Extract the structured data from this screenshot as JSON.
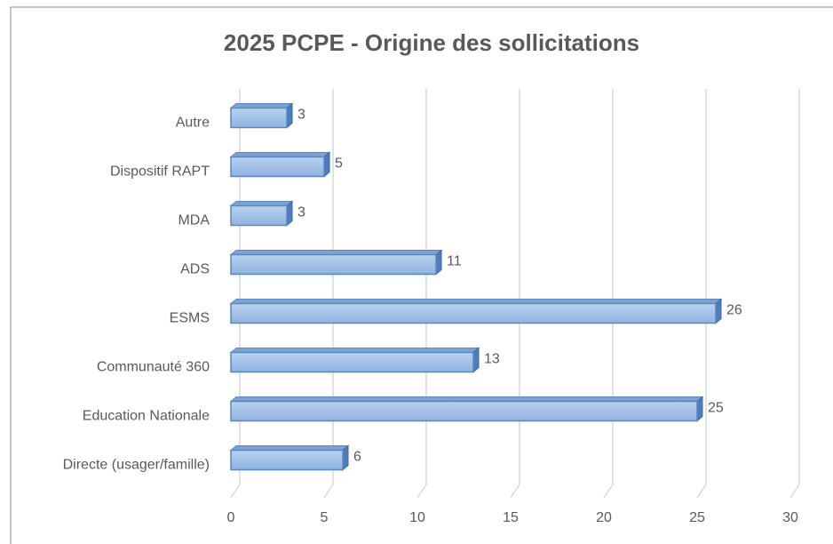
{
  "chart_data": {
    "type": "bar3d_horizontal",
    "title": "2025 PCPE - Origine des sollicitations",
    "categories": [
      "Directe (usager/famille)",
      "Education Nationale",
      "Communauté 360",
      "ESMS",
      "ADS",
      "MDA",
      "Dispositif RAPT",
      "Autre"
    ],
    "values": [
      6,
      25,
      13,
      26,
      11,
      3,
      5,
      3
    ],
    "color": "#95b9e6",
    "xlim": [
      0,
      30
    ],
    "xticks": [
      0,
      5,
      10,
      15,
      20,
      25,
      30
    ],
    "grid": true
  }
}
